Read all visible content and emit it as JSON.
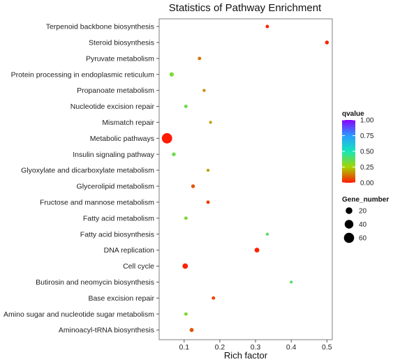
{
  "chart_data": {
    "type": "scatter",
    "title": "Statistics of Pathway Enrichment",
    "xlabel": "Rich factor",
    "ylabel": "",
    "xlim": [
      0.03,
      0.515
    ],
    "x_ticks": [
      0.1,
      0.2,
      0.3,
      0.4,
      0.5
    ],
    "x_tick_labels": [
      "0.1",
      "0.2",
      "0.3",
      "0.4",
      "0.5"
    ],
    "grid": false,
    "points": [
      {
        "pathway": "Terpenoid backbone biosynthesis",
        "rich_factor": 0.333,
        "qvalue": 0.02,
        "gene_number": 2
      },
      {
        "pathway": "Steroid biosynthesis",
        "rich_factor": 0.5,
        "qvalue": 0.01,
        "gene_number": 3
      },
      {
        "pathway": "Pyruvate metabolism",
        "rich_factor": 0.143,
        "qvalue": 0.12,
        "gene_number": 2
      },
      {
        "pathway": "Protein processing in endoplasmic reticulum",
        "rich_factor": 0.065,
        "qvalue": 0.32,
        "gene_number": 5
      },
      {
        "pathway": "Propanoate metabolism",
        "rich_factor": 0.156,
        "qvalue": 0.15,
        "gene_number": 1
      },
      {
        "pathway": "Nucleotide excision repair",
        "rich_factor": 0.105,
        "qvalue": 0.35,
        "gene_number": 2
      },
      {
        "pathway": "Mismatch repair",
        "rich_factor": 0.174,
        "qvalue": 0.18,
        "gene_number": 1
      },
      {
        "pathway": "Metabolic pathways",
        "rich_factor": 0.052,
        "qvalue": 0.0,
        "gene_number": 62
      },
      {
        "pathway": "Insulin signaling pathway",
        "rich_factor": 0.071,
        "qvalue": 0.35,
        "gene_number": 3
      },
      {
        "pathway": "Glyoxylate and dicarboxylate metabolism",
        "rich_factor": 0.167,
        "qvalue": 0.18,
        "gene_number": 1
      },
      {
        "pathway": "Glycerolipid metabolism",
        "rich_factor": 0.125,
        "qvalue": 0.08,
        "gene_number": 3
      },
      {
        "pathway": "Fructose and mannose metabolism",
        "rich_factor": 0.167,
        "qvalue": 0.05,
        "gene_number": 2
      },
      {
        "pathway": "Fatty acid metabolism",
        "rich_factor": 0.105,
        "qvalue": 0.32,
        "gene_number": 2
      },
      {
        "pathway": "Fatty acid biosynthesis",
        "rich_factor": 0.333,
        "qvalue": 0.38,
        "gene_number": 1
      },
      {
        "pathway": "DNA replication",
        "rich_factor": 0.304,
        "qvalue": 0.01,
        "gene_number": 7
      },
      {
        "pathway": "Cell cycle",
        "rich_factor": 0.103,
        "qvalue": 0.01,
        "gene_number": 11
      },
      {
        "pathway": "Butirosin and neomycin biosynthesis",
        "rich_factor": 0.4,
        "qvalue": 0.38,
        "gene_number": 1
      },
      {
        "pathway": "Base excision repair",
        "rich_factor": 0.182,
        "qvalue": 0.06,
        "gene_number": 2
      },
      {
        "pathway": "Amino sugar and nucleotide sugar metabolism",
        "rich_factor": 0.105,
        "qvalue": 0.32,
        "gene_number": 2
      },
      {
        "pathway": "Aminoacyl-tRNA biosynthesis",
        "rich_factor": 0.121,
        "qvalue": 0.08,
        "gene_number": 4
      }
    ],
    "color_legend": {
      "title": "qvalue",
      "range": [
        0.0,
        1.0
      ],
      "ticks": [
        1.0,
        0.75,
        0.5,
        0.25,
        0.0
      ],
      "tick_labels": [
        "1.00",
        "0.75",
        "0.50",
        "0.25",
        "0.00"
      ],
      "stops": [
        {
          "value": 0.0,
          "color": "#ff1a00"
        },
        {
          "value": 0.25,
          "color": "#a6d400"
        },
        {
          "value": 0.5,
          "color": "#14e8b8"
        },
        {
          "value": 0.75,
          "color": "#2a9cff"
        },
        {
          "value": 1.0,
          "color": "#8a00ff"
        }
      ]
    },
    "size_legend": {
      "title": "Gene_number",
      "entries": [
        {
          "label": "20",
          "value": 20
        },
        {
          "label": "40",
          "value": 40
        },
        {
          "label": "60",
          "value": 60
        }
      ]
    },
    "legend_placement": "right"
  }
}
